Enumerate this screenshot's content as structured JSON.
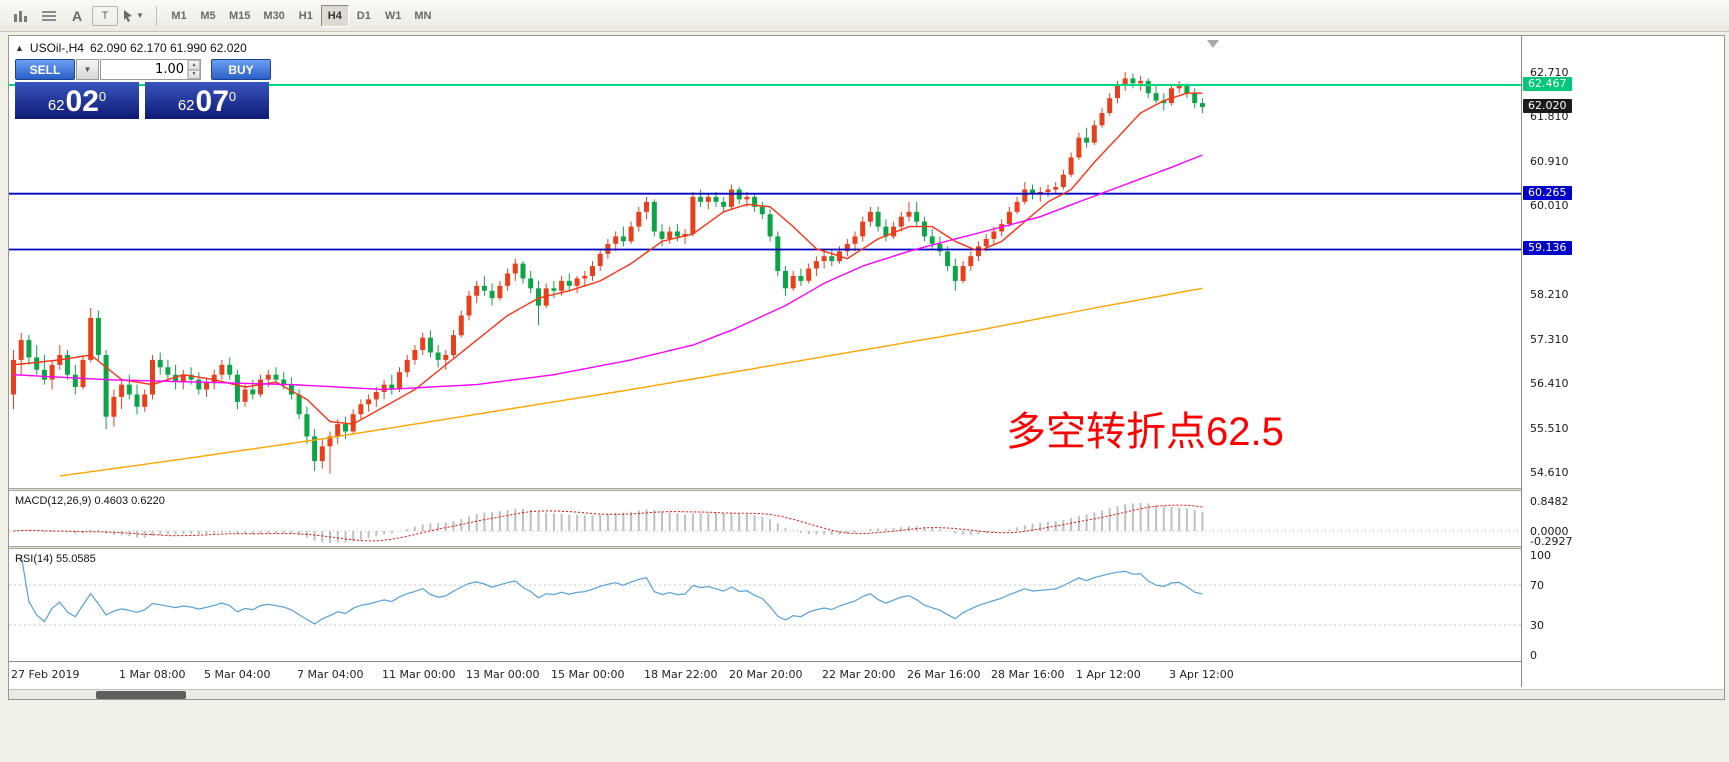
{
  "toolbar": {
    "icons": [
      "chart-expert-icon",
      "data-window-icon",
      "font-icon",
      "text-label-icon",
      "cursor-tool-icon"
    ],
    "timeframes": [
      "M1",
      "M5",
      "M15",
      "M30",
      "H1",
      "H4",
      "D1",
      "W1",
      "MN"
    ],
    "active_timeframe": "H4"
  },
  "chart_header": {
    "symbol": "USOil-,H4",
    "ohlc_values": "62.090 62.170 61.990 62.020"
  },
  "trade_panel": {
    "sell_label": "SELL",
    "buy_label": "BUY",
    "volume": "1.00",
    "bid": {
      "prefix": "62",
      "big": "02",
      "sup": "0"
    },
    "ask": {
      "prefix": "62",
      "big": "07",
      "sup": "0"
    }
  },
  "price_axis": {
    "labels": [
      "62.710",
      "61.810",
      "60.910",
      "60.010",
      "58.210",
      "57.310",
      "56.410",
      "55.510",
      "54.610"
    ],
    "badges": [
      {
        "text": "62.467",
        "bg": "#00c878",
        "fg": "#ffffff"
      },
      {
        "text": "62.020",
        "bg": "#1a1a1a",
        "fg": "#ffffff"
      },
      {
        "text": "60.265",
        "bg": "#0000c8",
        "fg": "#ffffff"
      },
      {
        "text": "59.136",
        "bg": "#0000c8",
        "fg": "#ffffff"
      }
    ]
  },
  "hlines": [
    {
      "price": 62.467,
      "color": "#00d882",
      "width": 2
    },
    {
      "price": 60.265,
      "color": "#0000c0",
      "width": 1.8
    },
    {
      "price": 59.136,
      "color": "#0000c0",
      "width": 1.8
    }
  ],
  "chart_data": {
    "type": "candlestick",
    "symbol": "USOil",
    "timeframe": "H4",
    "title": "USOil-,H4 62.090 62.170 61.990 62.020",
    "price_range_visible": [
      54.35,
      63.36
    ],
    "annotation": {
      "text": "多空转折点62.5",
      "color": "#ff0000"
    },
    "colors": {
      "up": "#e8401c",
      "down": "#0ca446"
    },
    "candles": [
      [
        56.2,
        57.1,
        55.9,
        56.9
      ],
      [
        56.9,
        57.45,
        56.6,
        57.3
      ],
      [
        57.3,
        57.4,
        56.8,
        56.95
      ],
      [
        56.95,
        57.2,
        56.6,
        56.7
      ],
      [
        56.7,
        57.0,
        56.4,
        56.5
      ],
      [
        56.5,
        56.9,
        56.3,
        56.8
      ],
      [
        56.8,
        57.2,
        56.7,
        57.0
      ],
      [
        57.0,
        57.1,
        56.5,
        56.6
      ],
      [
        56.6,
        56.8,
        56.2,
        56.35
      ],
      [
        56.35,
        57.0,
        56.3,
        56.9
      ],
      [
        56.9,
        57.95,
        56.85,
        57.75
      ],
      [
        57.75,
        57.9,
        56.9,
        57.0
      ],
      [
        57.0,
        57.1,
        55.5,
        55.75
      ],
      [
        55.75,
        56.3,
        55.55,
        56.15
      ],
      [
        56.15,
        56.5,
        55.9,
        56.4
      ],
      [
        56.4,
        56.6,
        56.1,
        56.2
      ],
      [
        56.2,
        56.4,
        55.8,
        55.95
      ],
      [
        55.95,
        56.3,
        55.85,
        56.2
      ],
      [
        56.2,
        57.0,
        56.1,
        56.9
      ],
      [
        56.9,
        57.05,
        56.6,
        56.75
      ],
      [
        56.75,
        56.9,
        56.45,
        56.6
      ],
      [
        56.6,
        56.8,
        56.3,
        56.45
      ],
      [
        56.45,
        56.7,
        56.3,
        56.6
      ],
      [
        56.6,
        56.75,
        56.4,
        56.5
      ],
      [
        56.5,
        56.65,
        56.2,
        56.3
      ],
      [
        56.3,
        56.55,
        56.15,
        56.45
      ],
      [
        56.45,
        56.7,
        56.3,
        56.6
      ],
      [
        56.6,
        56.9,
        56.5,
        56.8
      ],
      [
        56.8,
        56.95,
        56.5,
        56.6
      ],
      [
        56.6,
        56.7,
        55.9,
        56.05
      ],
      [
        56.05,
        56.4,
        55.95,
        56.3
      ],
      [
        56.3,
        56.5,
        56.1,
        56.2
      ],
      [
        56.2,
        56.6,
        56.15,
        56.5
      ],
      [
        56.5,
        56.7,
        56.35,
        56.6
      ],
      [
        56.6,
        56.75,
        56.4,
        56.5
      ],
      [
        56.5,
        56.65,
        56.3,
        56.4
      ],
      [
        56.4,
        56.55,
        56.1,
        56.2
      ],
      [
        56.2,
        56.3,
        55.7,
        55.8
      ],
      [
        55.8,
        55.95,
        55.2,
        55.35
      ],
      [
        55.35,
        55.5,
        54.65,
        54.85
      ],
      [
        54.85,
        55.3,
        54.7,
        55.15
      ],
      [
        55.15,
        55.45,
        54.6,
        55.35
      ],
      [
        55.35,
        55.7,
        55.2,
        55.6
      ],
      [
        55.6,
        55.75,
        55.3,
        55.45
      ],
      [
        55.45,
        55.9,
        55.4,
        55.8
      ],
      [
        55.8,
        56.1,
        55.7,
        56.0
      ],
      [
        56.0,
        56.2,
        55.85,
        56.1
      ],
      [
        56.1,
        56.35,
        55.95,
        56.25
      ],
      [
        56.25,
        56.5,
        56.1,
        56.4
      ],
      [
        56.4,
        56.6,
        56.2,
        56.3
      ],
      [
        56.3,
        56.75,
        56.25,
        56.65
      ],
      [
        56.65,
        57.0,
        56.55,
        56.9
      ],
      [
        56.9,
        57.2,
        56.8,
        57.1
      ],
      [
        57.1,
        57.45,
        57.0,
        57.35
      ],
      [
        57.35,
        57.5,
        56.95,
        57.05
      ],
      [
        57.05,
        57.2,
        56.75,
        56.9
      ],
      [
        56.9,
        57.1,
        56.7,
        57.0
      ],
      [
        57.0,
        57.5,
        56.95,
        57.4
      ],
      [
        57.4,
        57.9,
        57.35,
        57.8
      ],
      [
        57.8,
        58.3,
        57.7,
        58.2
      ],
      [
        58.2,
        58.5,
        58.05,
        58.4
      ],
      [
        58.4,
        58.6,
        58.2,
        58.3
      ],
      [
        58.3,
        58.45,
        58.0,
        58.15
      ],
      [
        58.15,
        58.5,
        58.1,
        58.4
      ],
      [
        58.4,
        58.75,
        58.3,
        58.65
      ],
      [
        58.65,
        58.95,
        58.5,
        58.85
      ],
      [
        58.85,
        58.9,
        58.45,
        58.55
      ],
      [
        58.55,
        58.7,
        58.25,
        58.35
      ],
      [
        58.35,
        58.5,
        57.6,
        58.0
      ],
      [
        58.0,
        58.45,
        57.95,
        58.35
      ],
      [
        58.35,
        58.5,
        58.15,
        58.3
      ],
      [
        58.3,
        58.6,
        58.2,
        58.5
      ],
      [
        58.5,
        58.65,
        58.3,
        58.4
      ],
      [
        58.4,
        58.6,
        58.25,
        58.55
      ],
      [
        58.55,
        58.7,
        58.4,
        58.6
      ],
      [
        58.6,
        58.9,
        58.5,
        58.8
      ],
      [
        58.8,
        59.15,
        58.7,
        59.05
      ],
      [
        59.05,
        59.35,
        58.95,
        59.25
      ],
      [
        59.25,
        59.5,
        59.1,
        59.4
      ],
      [
        59.4,
        59.6,
        59.2,
        59.3
      ],
      [
        59.3,
        59.7,
        59.25,
        59.6
      ],
      [
        59.6,
        60.0,
        59.5,
        59.9
      ],
      [
        59.9,
        60.2,
        59.75,
        60.1
      ],
      [
        60.1,
        60.15,
        59.4,
        59.5
      ],
      [
        59.5,
        59.65,
        59.2,
        59.35
      ],
      [
        59.35,
        59.6,
        59.25,
        59.5
      ],
      [
        59.5,
        59.65,
        59.3,
        59.4
      ],
      [
        59.4,
        59.55,
        59.25,
        59.45
      ],
      [
        59.45,
        60.3,
        59.4,
        60.2
      ],
      [
        60.2,
        60.35,
        60.0,
        60.1
      ],
      [
        60.1,
        60.25,
        59.95,
        60.2
      ],
      [
        60.2,
        60.3,
        60.0,
        60.1
      ],
      [
        60.1,
        60.2,
        59.9,
        60.0
      ],
      [
        60.0,
        60.45,
        59.95,
        60.35
      ],
      [
        60.35,
        60.4,
        60.05,
        60.15
      ],
      [
        60.15,
        60.3,
        60.0,
        60.2
      ],
      [
        60.2,
        60.25,
        59.9,
        60.0
      ],
      [
        60.0,
        60.1,
        59.75,
        59.85
      ],
      [
        59.85,
        59.95,
        59.3,
        59.4
      ],
      [
        59.4,
        59.5,
        58.6,
        58.7
      ],
      [
        58.7,
        58.8,
        58.2,
        58.35
      ],
      [
        58.35,
        58.7,
        58.3,
        58.6
      ],
      [
        58.6,
        58.75,
        58.4,
        58.5
      ],
      [
        58.5,
        58.85,
        58.45,
        58.75
      ],
      [
        58.75,
        59.0,
        58.6,
        58.9
      ],
      [
        58.9,
        59.1,
        58.75,
        59.0
      ],
      [
        59.0,
        59.15,
        58.8,
        58.9
      ],
      [
        58.9,
        59.2,
        58.85,
        59.1
      ],
      [
        59.1,
        59.35,
        59.0,
        59.25
      ],
      [
        59.25,
        59.5,
        59.1,
        59.4
      ],
      [
        59.4,
        59.8,
        59.3,
        59.7
      ],
      [
        59.7,
        60.0,
        59.6,
        59.9
      ],
      [
        59.9,
        60.0,
        59.5,
        59.6
      ],
      [
        59.6,
        59.75,
        59.3,
        59.4
      ],
      [
        59.4,
        59.7,
        59.35,
        59.6
      ],
      [
        59.6,
        59.9,
        59.5,
        59.8
      ],
      [
        59.8,
        60.1,
        59.7,
        59.9
      ],
      [
        59.9,
        60.1,
        59.6,
        59.7
      ],
      [
        59.7,
        59.8,
        59.3,
        59.4
      ],
      [
        59.4,
        59.55,
        59.15,
        59.25
      ],
      [
        59.25,
        59.4,
        59.0,
        59.1
      ],
      [
        59.1,
        59.2,
        58.7,
        58.8
      ],
      [
        58.8,
        58.95,
        58.3,
        58.5
      ],
      [
        58.5,
        58.9,
        58.45,
        58.8
      ],
      [
        58.8,
        59.1,
        58.7,
        59.0
      ],
      [
        59.0,
        59.3,
        58.9,
        59.2
      ],
      [
        59.2,
        59.45,
        59.1,
        59.35
      ],
      [
        59.35,
        59.6,
        59.25,
        59.5
      ],
      [
        59.5,
        59.75,
        59.4,
        59.65
      ],
      [
        59.65,
        60.0,
        59.6,
        59.9
      ],
      [
        59.9,
        60.2,
        59.85,
        60.1
      ],
      [
        60.1,
        60.5,
        60.05,
        60.35
      ],
      [
        60.35,
        60.45,
        60.15,
        60.25
      ],
      [
        60.25,
        60.4,
        60.1,
        60.3
      ],
      [
        60.3,
        60.45,
        60.2,
        60.35
      ],
      [
        60.35,
        60.5,
        60.25,
        60.4
      ],
      [
        60.4,
        60.75,
        60.35,
        60.65
      ],
      [
        60.65,
        61.1,
        60.6,
        61.0
      ],
      [
        61.0,
        61.5,
        60.95,
        61.4
      ],
      [
        61.4,
        61.6,
        61.2,
        61.3
      ],
      [
        61.3,
        61.75,
        61.25,
        61.65
      ],
      [
        61.65,
        62.0,
        61.6,
        61.9
      ],
      [
        61.9,
        62.3,
        61.85,
        62.2
      ],
      [
        62.2,
        62.55,
        62.1,
        62.45
      ],
      [
        62.45,
        62.73,
        62.35,
        62.6
      ],
      [
        62.6,
        62.7,
        62.4,
        62.5
      ],
      [
        62.5,
        62.65,
        62.35,
        62.55
      ],
      [
        62.55,
        62.6,
        62.2,
        62.3
      ],
      [
        62.3,
        62.45,
        62.1,
        62.15
      ],
      [
        62.15,
        62.3,
        61.95,
        62.1
      ],
      [
        62.1,
        62.45,
        62.05,
        62.4
      ],
      [
        62.4,
        62.55,
        62.3,
        62.45
      ],
      [
        62.45,
        62.5,
        62.2,
        62.3
      ],
      [
        62.3,
        62.4,
        62.0,
        62.1
      ],
      [
        62.1,
        62.2,
        61.9,
        62.02
      ]
    ],
    "ma_lines": [
      {
        "name": "fast-ma",
        "color": "#ff3214",
        "points": [
          [
            0,
            56.8
          ],
          [
            6,
            56.9
          ],
          [
            10,
            57.0
          ],
          [
            14,
            56.5
          ],
          [
            18,
            56.4
          ],
          [
            22,
            56.6
          ],
          [
            26,
            56.5
          ],
          [
            30,
            56.35
          ],
          [
            34,
            56.45
          ],
          [
            38,
            56.1
          ],
          [
            41,
            55.65
          ],
          [
            44,
            55.6
          ],
          [
            48,
            55.95
          ],
          [
            52,
            56.3
          ],
          [
            56,
            56.8
          ],
          [
            60,
            57.3
          ],
          [
            64,
            57.8
          ],
          [
            68,
            58.15
          ],
          [
            72,
            58.3
          ],
          [
            76,
            58.5
          ],
          [
            80,
            58.85
          ],
          [
            84,
            59.3
          ],
          [
            88,
            59.45
          ],
          [
            92,
            59.9
          ],
          [
            95,
            60.05
          ],
          [
            98,
            60.0
          ],
          [
            101,
            59.6
          ],
          [
            104,
            59.15
          ],
          [
            108,
            58.95
          ],
          [
            112,
            59.35
          ],
          [
            116,
            59.6
          ],
          [
            119,
            59.6
          ],
          [
            122,
            59.3
          ],
          [
            125,
            59.1
          ],
          [
            128,
            59.3
          ],
          [
            131,
            59.7
          ],
          [
            134,
            60.1
          ],
          [
            137,
            60.35
          ],
          [
            140,
            60.9
          ],
          [
            143,
            61.4
          ],
          [
            146,
            61.9
          ],
          [
            149,
            62.15
          ],
          [
            152,
            62.3
          ],
          [
            154,
            62.3
          ]
        ]
      },
      {
        "name": "medium-ma",
        "color": "#ff00ff",
        "points": [
          [
            0,
            56.6
          ],
          [
            12,
            56.5
          ],
          [
            24,
            56.45
          ],
          [
            36,
            56.4
          ],
          [
            48,
            56.3
          ],
          [
            60,
            56.4
          ],
          [
            70,
            56.6
          ],
          [
            80,
            56.9
          ],
          [
            88,
            57.2
          ],
          [
            93,
            57.5
          ],
          [
            100,
            58.0
          ],
          [
            105,
            58.45
          ],
          [
            110,
            58.8
          ],
          [
            116,
            59.1
          ],
          [
            122,
            59.35
          ],
          [
            127,
            59.55
          ],
          [
            133,
            59.8
          ],
          [
            138,
            60.1
          ],
          [
            144,
            60.45
          ],
          [
            150,
            60.8
          ],
          [
            154,
            61.05
          ]
        ]
      },
      {
        "name": "slow-ma",
        "color": "#ffa500",
        "points": [
          [
            6,
            54.55
          ],
          [
            20,
            54.85
          ],
          [
            40,
            55.3
          ],
          [
            60,
            55.8
          ],
          [
            80,
            56.3
          ],
          [
            95,
            56.7
          ],
          [
            110,
            57.1
          ],
          [
            125,
            57.5
          ],
          [
            140,
            57.95
          ],
          [
            154,
            58.35
          ]
        ]
      }
    ],
    "time_labels": [
      [
        "27 Feb 2019",
        0
      ],
      [
        "1 Mar 08:00",
        14
      ],
      [
        "5 Mar 04:00",
        25
      ],
      [
        "7 Mar 04:00",
        37
      ],
      [
        "11 Mar 00:00",
        48
      ],
      [
        "13 Mar 00:00",
        59
      ],
      [
        "15 Mar 00:00",
        70
      ],
      [
        "18 Mar 22:00",
        82
      ],
      [
        "20 Mar 20:00",
        93
      ],
      [
        "22 Mar 20:00",
        105
      ],
      [
        "26 Mar 16:00",
        116
      ],
      [
        "28 Mar 16:00",
        127
      ],
      [
        "1 Apr 12:00",
        138
      ],
      [
        "3 Apr 12:00",
        150
      ]
    ],
    "indicators": {
      "macd": {
        "label": "MACD(12,26,9) 0.4603 0.6220",
        "params": [
          12,
          26,
          9
        ],
        "values": [
          0.4603,
          0.622
        ],
        "range": [
          -0.2927,
          0.8482
        ],
        "axis": [
          "0.8482",
          "0.0000",
          "-0.2927"
        ],
        "histogram_color": "#c0c0c0",
        "signal_color": "#ff0000"
      },
      "rsi": {
        "label": "RSI(14) 55.0585",
        "period": 14,
        "value": 55.0585,
        "range": [
          0,
          100
        ],
        "levels": [
          70,
          30
        ],
        "axis": [
          "100",
          "70",
          "30",
          "0"
        ],
        "line_color": "#55a1da"
      }
    }
  }
}
